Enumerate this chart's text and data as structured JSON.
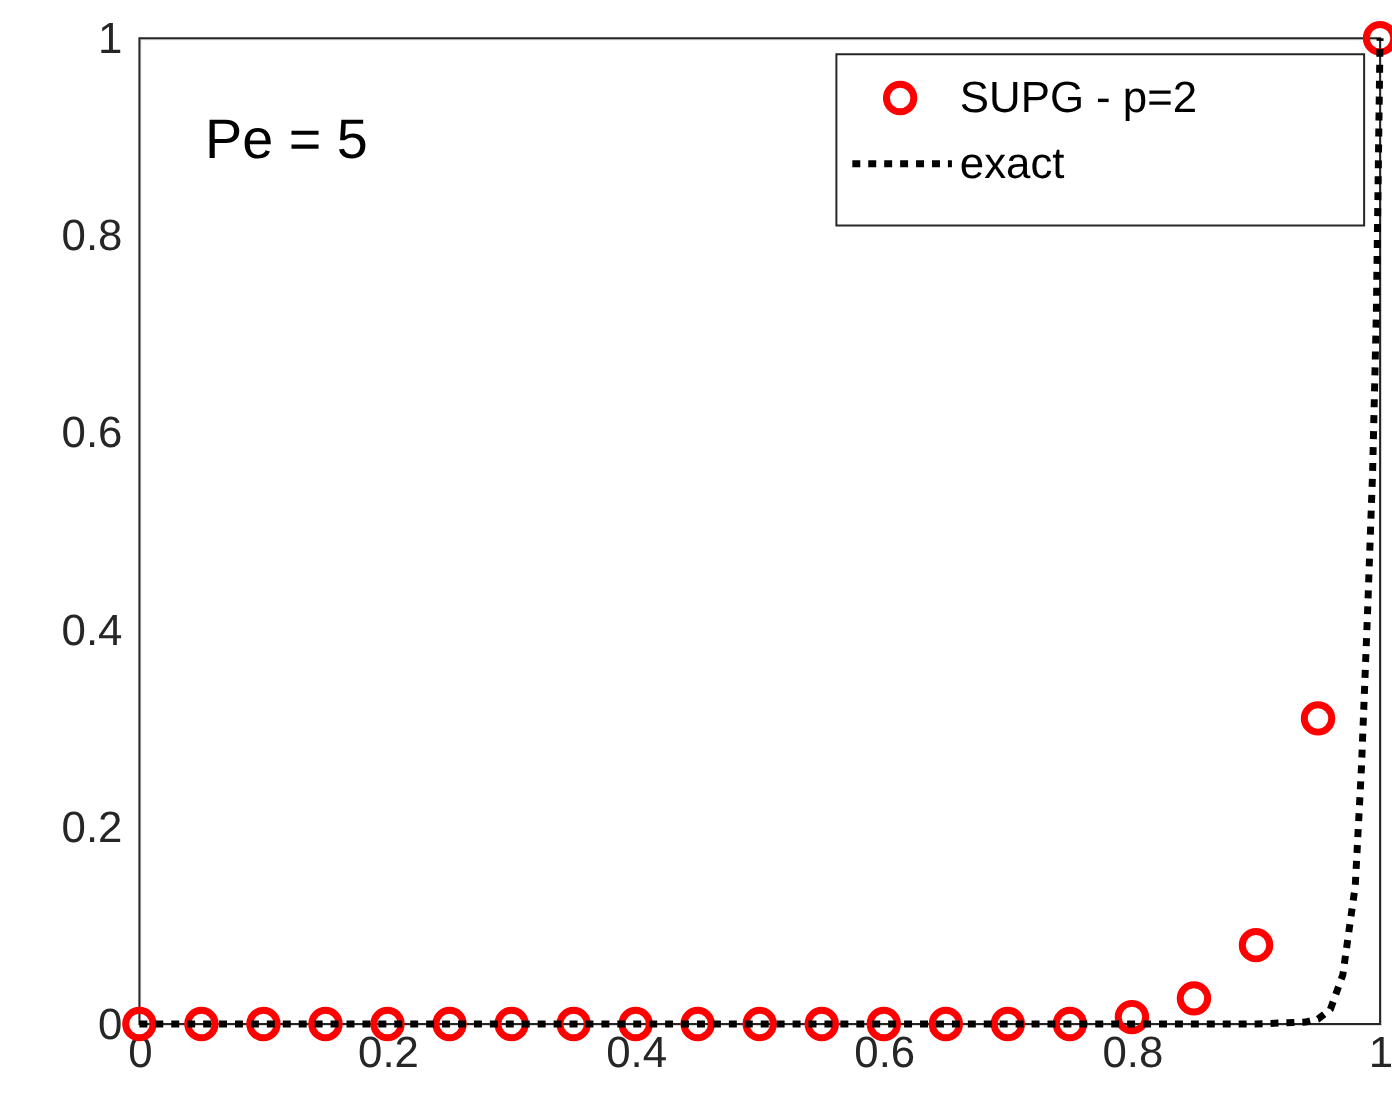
{
  "chart_data": {
    "type": "scatter",
    "xlim": [
      0,
      1
    ],
    "ylim": [
      0,
      1
    ],
    "xticks": [
      0,
      0.2,
      0.4,
      0.6,
      0.8,
      1
    ],
    "yticks": [
      0,
      0.2,
      0.4,
      0.6,
      0.8,
      1
    ],
    "annotations": [
      "Pe = 5"
    ],
    "legend": "top right",
    "grid": false,
    "series": [
      {
        "name": "SUPG - p=2",
        "color": "#ff0000",
        "marker": "circle",
        "x": [
          0,
          0.05,
          0.1,
          0.15,
          0.2,
          0.25,
          0.3,
          0.35,
          0.4,
          0.45,
          0.5,
          0.55,
          0.6,
          0.65,
          0.7,
          0.75,
          0.8,
          0.85,
          0.9,
          0.95,
          1
        ],
        "values": [
          0,
          0,
          0,
          0,
          0,
          0,
          0,
          0,
          0,
          0,
          0,
          0,
          0,
          0,
          0,
          0,
          0.007,
          0.026,
          0.08,
          0.31,
          1
        ]
      },
      {
        "name": "exact",
        "type": "line",
        "color": "#000000",
        "line_style": "dotted",
        "marker": "none",
        "x": [
          0,
          0.5,
          0.9,
          0.94,
          0.95,
          0.96,
          0.97,
          0.98,
          0.985,
          0.99,
          0.994,
          0.997,
          1
        ],
        "values": [
          0,
          0,
          0,
          0.002,
          0.005,
          0.015,
          0.05,
          0.14,
          0.26,
          0.42,
          0.56,
          0.72,
          1
        ]
      }
    ]
  }
}
